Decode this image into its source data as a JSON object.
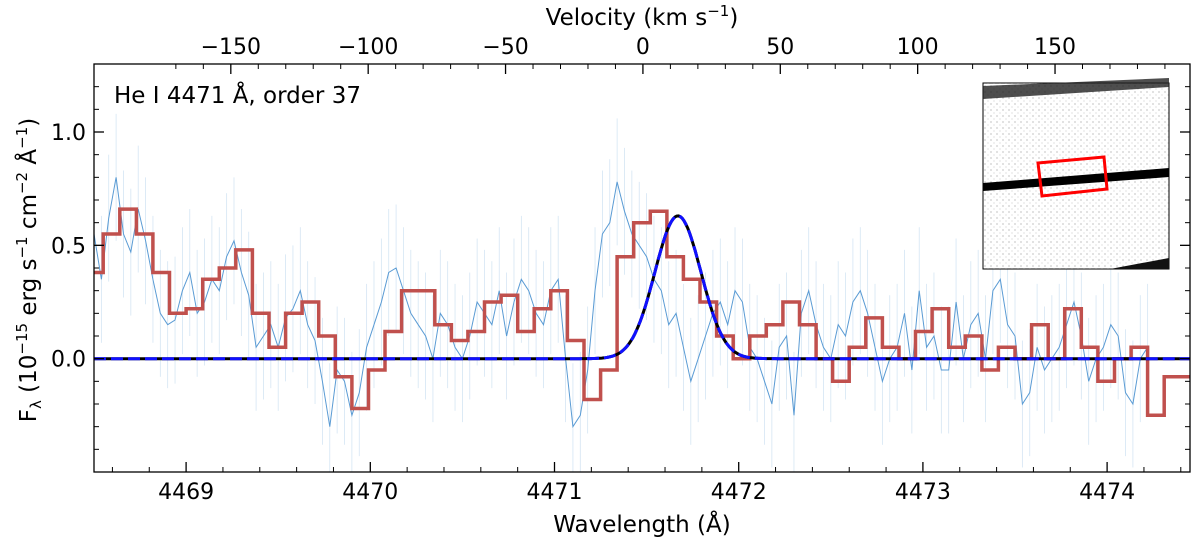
{
  "chart_data": {
    "type": "line",
    "title": "",
    "annotation": "He I 4471 Å, order 37",
    "xlabel": "Wavelength (Å)",
    "ylabel": "F",
    "ylabel_sub": "λ",
    "ylabel_units": "(10",
    "ylabel_exp1": "−15",
    "ylabel_mid1": " erg s",
    "ylabel_exp2": "−1",
    "ylabel_mid2": " cm",
    "ylabel_exp3": "−2",
    "ylabel_mid3": " Å",
    "ylabel_exp4": "−1",
    "ylabel_end": ")",
    "top_xlabel": "Velocity (km s",
    "top_xlabel_exp": "−1",
    "top_xlabel_end": ")",
    "xlim": [
      4468.5,
      4474.45
    ],
    "ylim": [
      -0.5,
      1.3
    ],
    "x_ticks": [
      4469,
      4470,
      4471,
      4472,
      4473,
      4474
    ],
    "x_tick_labels": [
      "4469",
      "4470",
      "4471",
      "4472",
      "4473",
      "4474"
    ],
    "y_ticks": [
      0.0,
      0.5,
      1.0
    ],
    "y_tick_labels": [
      "0.0",
      "0.5",
      "1.0"
    ],
    "velocity_ticks": [
      -150,
      -100,
      -50,
      0,
      50,
      100,
      150
    ],
    "velocity_tick_labels": [
      "−150",
      "−100",
      "−50",
      "0",
      "50",
      "100",
      "150"
    ],
    "velocity_zero_wavelength": 4471.48,
    "c_kms": 299792.458,
    "gaussian_fit": {
      "amplitude": 0.63,
      "center": 4471.67,
      "sigma": 0.125
    },
    "raw_start": 4468.5,
    "raw_step": 0.04,
    "raw_flux": [
      0.55,
      0.35,
      0.62,
      0.8,
      0.55,
      0.47,
      0.66,
      0.52,
      0.35,
      0.2,
      0.15,
      0.17,
      0.3,
      0.38,
      0.2,
      0.25,
      0.35,
      0.3,
      0.45,
      0.52,
      0.38,
      0.28,
      0.05,
      0.1,
      0.15,
      0.05,
      0.18,
      0.22,
      0.3,
      0.15,
      0.08,
      -0.1,
      -0.3,
      -0.05,
      -0.1,
      -0.25,
      -0.15,
      0.05,
      0.15,
      0.25,
      0.38,
      0.4,
      0.3,
      0.2,
      0.15,
      0.1,
      0.0,
      0.2,
      0.15,
      0.05,
      0.0,
      0.1,
      0.25,
      0.2,
      0.15,
      0.3,
      0.1,
      0.25,
      0.35,
      0.3,
      0.2,
      0.15,
      0.3,
      0.35,
      0.0,
      -0.3,
      -0.25,
      -0.05,
      0.3,
      0.55,
      0.6,
      0.78,
      0.65,
      0.55,
      0.5,
      0.45,
      0.35,
      0.3,
      0.15,
      0.2,
      0.05,
      -0.1,
      0.0,
      0.1,
      0.2,
      0.25,
      0.15,
      0.3,
      0.25,
      0.05,
      0.0,
      -0.1,
      -0.2,
      0.05,
      0.1,
      -0.25,
      0.2,
      0.3,
      0.15,
      0.05,
      0.0,
      0.15,
      0.1,
      0.25,
      0.3,
      0.2,
      0.05,
      -0.1,
      0.0,
      0.05,
      0.2,
      -0.05,
      0.3,
      0.05,
      0.1,
      -0.05,
      -0.05,
      0.25,
      0.0,
      0.15,
      0.2,
      0.0,
      0.3,
      0.35,
      0.15,
      0.1,
      -0.2,
      -0.15,
      0.05,
      -0.05,
      0.0,
      0.05,
      0.15,
      0.25,
      0.1,
      -0.1,
      0.0,
      0.05,
      0.15,
      0.1,
      -0.15,
      -0.2,
      0.0,
      0.05
    ],
    "bin_edges": [
      4468.5,
      4468.55,
      4468.64,
      4468.73,
      4468.82,
      4468.91,
      4469.0,
      4469.09,
      4469.18,
      4469.27,
      4469.36,
      4469.45,
      4469.54,
      4469.63,
      4469.72,
      4469.81,
      4469.9,
      4469.99,
      4470.08,
      4470.17,
      4470.26,
      4470.35,
      4470.44,
      4470.53,
      4470.62,
      4470.71,
      4470.8,
      4470.89,
      4470.98,
      4471.07,
      4471.16,
      4471.25,
      4471.34,
      4471.43,
      4471.52,
      4471.61,
      4471.7,
      4471.79,
      4471.88,
      4471.97,
      4472.06,
      4472.15,
      4472.24,
      4472.33,
      4472.42,
      4472.51,
      4472.6,
      4472.69,
      4472.78,
      4472.87,
      4472.96,
      4473.05,
      4473.14,
      4473.23,
      4473.32,
      4473.41,
      4473.5,
      4473.59,
      4473.68,
      4473.77,
      4473.86,
      4473.95,
      4474.04,
      4474.13,
      4474.22,
      4474.31,
      4474.45
    ],
    "binned_flux": [
      0.38,
      0.55,
      0.66,
      0.55,
      0.38,
      0.2,
      0.22,
      0.35,
      0.4,
      0.48,
      0.2,
      0.05,
      0.2,
      0.25,
      0.1,
      -0.08,
      -0.22,
      -0.05,
      0.12,
      0.3,
      0.3,
      0.15,
      0.08,
      0.12,
      0.25,
      0.28,
      0.12,
      0.22,
      0.3,
      0.08,
      -0.18,
      -0.05,
      0.45,
      0.6,
      0.65,
      0.45,
      0.35,
      0.25,
      0.1,
      0.0,
      0.1,
      0.15,
      0.25,
      0.15,
      0.0,
      -0.1,
      0.05,
      0.18,
      0.05,
      0.0,
      0.12,
      0.22,
      0.05,
      0.1,
      -0.05,
      0.05,
      0.0,
      0.15,
      0.0,
      0.22,
      0.05,
      -0.1,
      0.0,
      0.05,
      -0.25,
      -0.08
    ]
  }
}
